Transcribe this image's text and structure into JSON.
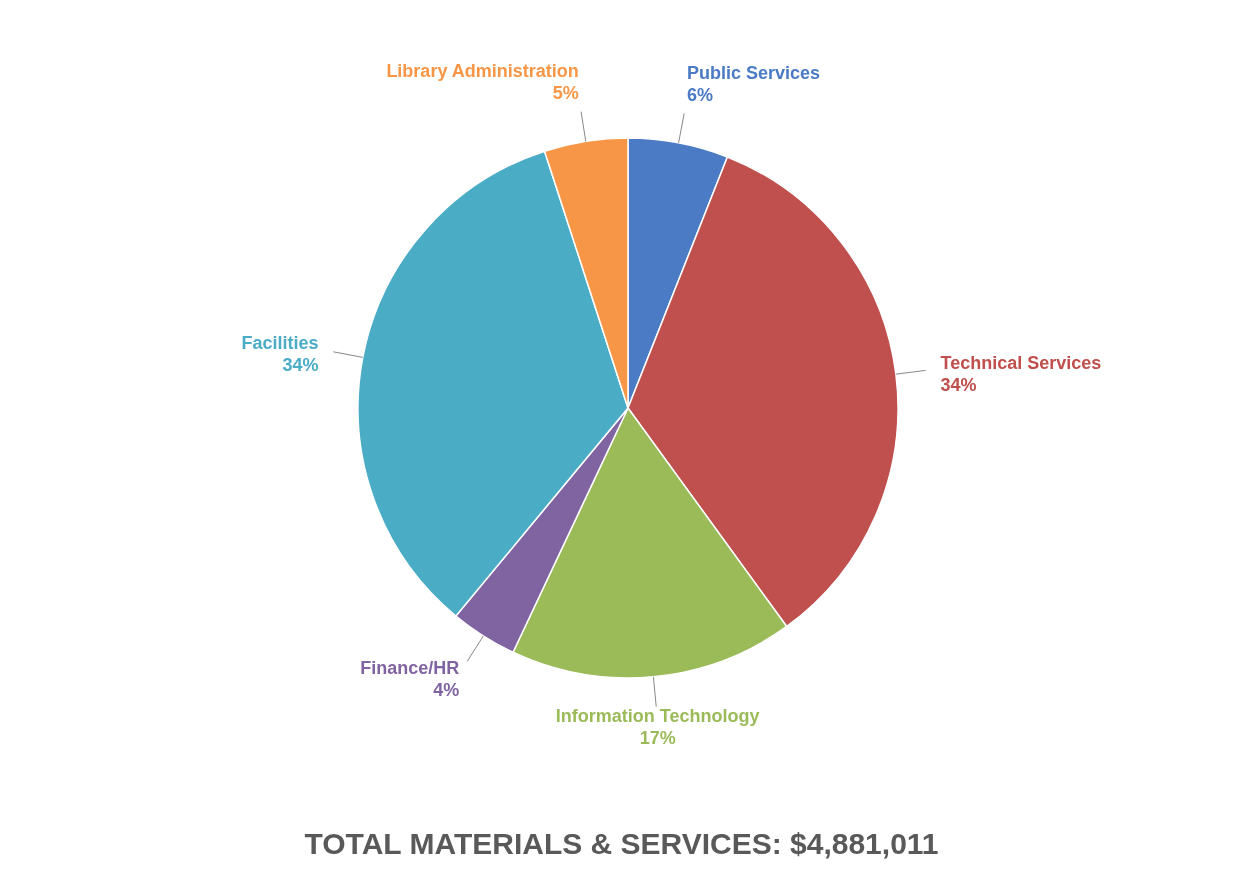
{
  "chart_data": {
    "type": "pie",
    "title": "TOTAL MATERIALS & SERVICES: $4,881,011",
    "categories": [
      "Public Services",
      "Technical Services",
      "Information Technology",
      "Finance/HR",
      "Facilities",
      "Library Administration"
    ],
    "values": [
      6,
      34,
      17,
      4,
      34,
      5
    ],
    "value_labels": [
      "6%",
      "34%",
      "17%",
      "4%",
      "34%",
      "5%"
    ],
    "colors": [
      "#4a7bc4",
      "#c0504d",
      "#9bbb59",
      "#8064a2",
      "#4bacc6",
      "#f79646"
    ]
  }
}
